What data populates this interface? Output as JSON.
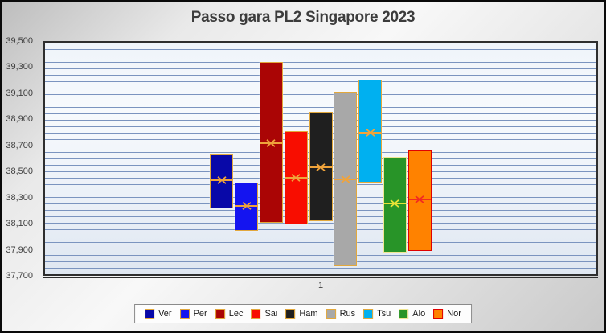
{
  "title": "Passo gara PL2 Singapore 2023",
  "chart_data": {
    "type": "bar",
    "subtype": "floating-hilo-columns-with-mean-x-markers",
    "title": "Passo gara PL2 Singapore 2023",
    "categories": [
      "1"
    ],
    "ylim": [
      37700,
      39500
    ],
    "y_major_unit": 200,
    "y_minor_unit": 50,
    "grid": true,
    "legend_position": "bottom",
    "gridline_color": "#7b94bf",
    "y_ticks": [
      {
        "value": 39500,
        "label": "39,500"
      },
      {
        "value": 39300,
        "label": "39,300"
      },
      {
        "value": 39100,
        "label": "39,100"
      },
      {
        "value": 38900,
        "label": "38,900"
      },
      {
        "value": 38700,
        "label": "38,700"
      },
      {
        "value": 38500,
        "label": "38,500"
      },
      {
        "value": 38300,
        "label": "38,300"
      },
      {
        "value": 38100,
        "label": "38,100"
      },
      {
        "value": 37900,
        "label": "37,900"
      },
      {
        "value": 37700,
        "label": "37,700"
      }
    ],
    "series": [
      {
        "name": "Ver",
        "low": 38210,
        "high": 38630,
        "mean": 38430,
        "fill": "#0808a8",
        "border_color": "#e2a83c",
        "marker_color": "#efa33b"
      },
      {
        "name": "Per",
        "low": 38040,
        "high": 38410,
        "mean": 38230,
        "fill": "#1414f0",
        "border_color": "#e2a83c",
        "marker_color": "#efa33b"
      },
      {
        "name": "Lec",
        "low": 38100,
        "high": 39350,
        "mean": 38720,
        "fill": "#aa0505",
        "border_color": "#e2a83c",
        "marker_color": "#efa33b"
      },
      {
        "name": "Sai",
        "low": 38090,
        "high": 38810,
        "mean": 38450,
        "fill": "#f80d00",
        "border_color": "#e2a83c",
        "marker_color": "#efa33b"
      },
      {
        "name": "Ham",
        "low": 38110,
        "high": 38960,
        "mean": 38530,
        "fill": "#1f1f1f",
        "border_color": "#e2a83c",
        "marker_color": "#efa33b"
      },
      {
        "name": "Rus",
        "low": 37760,
        "high": 39120,
        "mean": 38440,
        "fill": "#a8a8a8",
        "border_color": "#e2a83c",
        "marker_color": "#efa33b"
      },
      {
        "name": "Tsu",
        "low": 38410,
        "high": 39210,
        "mean": 38800,
        "fill": "#00b0f0",
        "border_color": "#e2a83c",
        "marker_color": "#efa33b"
      },
      {
        "name": "Alo",
        "low": 37870,
        "high": 38610,
        "mean": 38250,
        "fill": "#289428",
        "border_color": "#efe693",
        "marker_color": "#e8e337"
      },
      {
        "name": "Nor",
        "low": 37880,
        "high": 38660,
        "mean": 38280,
        "fill": "#ff8200",
        "border_color": "#e00000",
        "marker_color": "#f22b20"
      }
    ]
  }
}
